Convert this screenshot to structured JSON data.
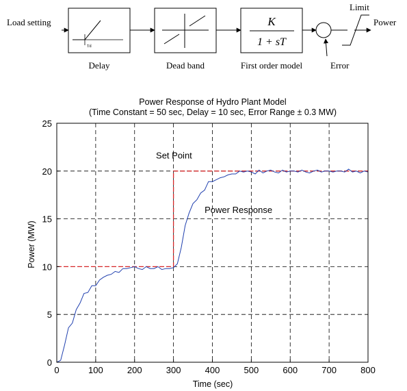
{
  "block_diagram": {
    "input_label": "Load setting",
    "delay_symbol": "Td",
    "delay_label": "Delay",
    "deadband_label": "Dead band",
    "tf_numerator": "K",
    "tf_denominator": "1 + sT",
    "first_order_label": "First order model",
    "limit_label": "Limit",
    "output_label": "Power",
    "error_label": "Error"
  },
  "chart_data": {
    "type": "line",
    "title": "Power Response of Hydro Plant Model",
    "subtitle": "(Time Constant = 50 sec, Delay = 10 sec, Error Range ± 0.3 MW)",
    "xlabel": "Time (sec)",
    "ylabel": "Power (MW)",
    "xlim": [
      0,
      800
    ],
    "ylim": [
      0,
      25
    ],
    "grid": true,
    "x_ticks": [
      0,
      100,
      200,
      300,
      400,
      500,
      600,
      700,
      800
    ],
    "y_ticks": [
      0,
      5,
      10,
      15,
      20,
      25
    ],
    "annotations": [
      "Set Point",
      "Power Response"
    ],
    "series": [
      {
        "name": "Set Point",
        "color": "#d62728",
        "style": "dashed",
        "x": [
          0,
          300,
          300,
          800
        ],
        "y": [
          10,
          10,
          20,
          20
        ]
      },
      {
        "name": "Power Response",
        "color": "#1f3fae",
        "style": "solid",
        "x": [
          0,
          10,
          20,
          30,
          40,
          50,
          60,
          70,
          80,
          90,
          100,
          110,
          120,
          130,
          140,
          150,
          160,
          170,
          180,
          190,
          200,
          210,
          220,
          230,
          240,
          250,
          260,
          270,
          280,
          290,
          300,
          310,
          320,
          330,
          340,
          350,
          360,
          370,
          380,
          390,
          400,
          410,
          420,
          430,
          440,
          450,
          460,
          470,
          480,
          490,
          500,
          510,
          520,
          530,
          540,
          550,
          560,
          570,
          580,
          590,
          600,
          610,
          620,
          630,
          640,
          650,
          660,
          670,
          680,
          690,
          700,
          710,
          720,
          730,
          740,
          750,
          760,
          770,
          780,
          790,
          800
        ],
        "y": [
          0,
          0.2,
          1.8,
          3.6,
          4.1,
          5.5,
          6.2,
          7.2,
          7.3,
          8.0,
          8.0,
          8.6,
          8.9,
          9.1,
          9.2,
          9.5,
          9.4,
          9.8,
          9.8,
          9.9,
          10.0,
          9.8,
          9.7,
          10.0,
          9.8,
          9.8,
          10.0,
          9.7,
          9.8,
          9.8,
          9.9,
          10.3,
          12.0,
          14.3,
          15.6,
          16.6,
          17.0,
          17.7,
          18.0,
          18.9,
          18.9,
          19.1,
          19.3,
          19.4,
          19.6,
          19.7,
          19.7,
          20.0,
          19.9,
          20.0,
          19.9,
          19.7,
          20.1,
          19.8,
          20.0,
          20.1,
          19.9,
          19.8,
          20.1,
          19.9,
          20.0,
          20.0,
          19.9,
          20.1,
          19.9,
          19.8,
          20.0,
          20.1,
          19.9,
          20.0,
          20.0,
          19.9,
          20.0,
          20.0,
          19.9,
          20.2,
          19.9,
          20.0,
          19.8,
          20.0,
          19.9
        ]
      }
    ]
  }
}
